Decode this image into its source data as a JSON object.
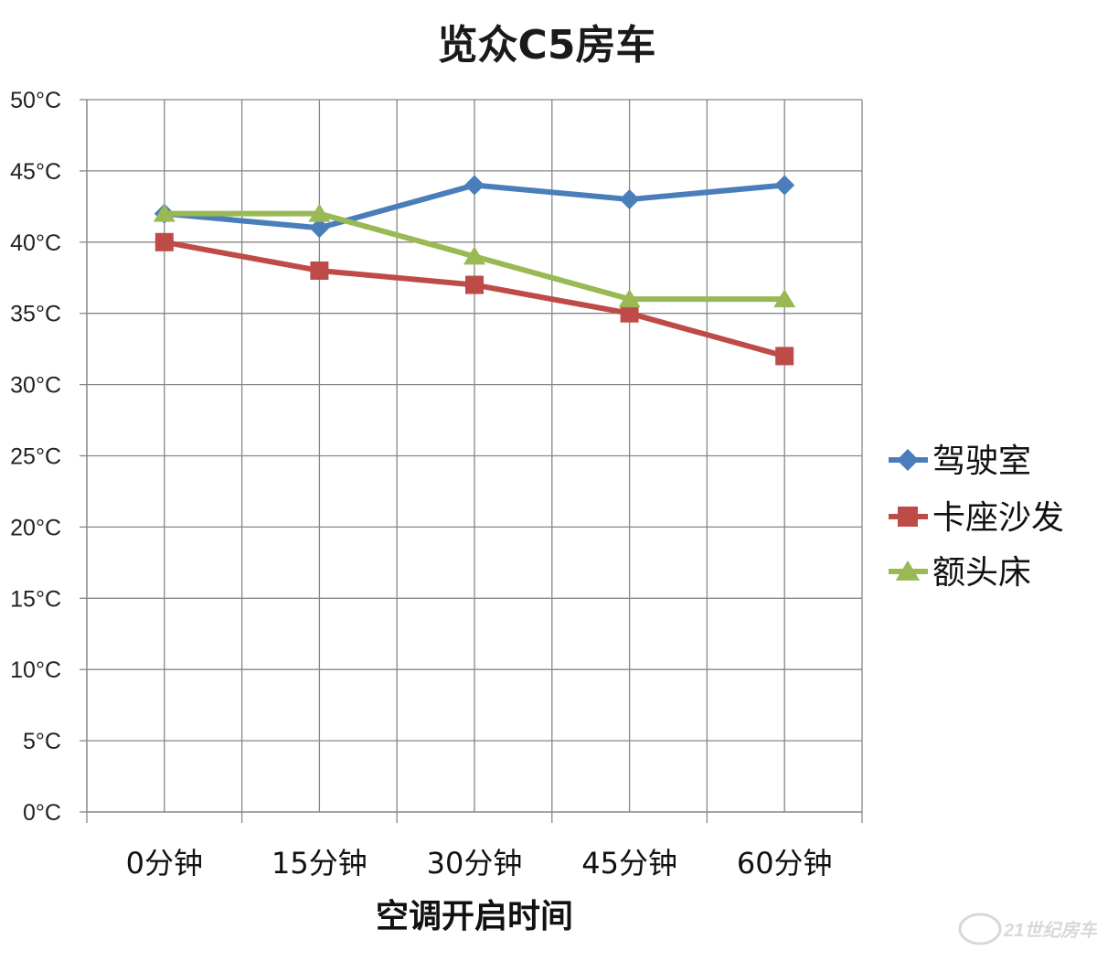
{
  "chart_data": {
    "type": "line",
    "title": "览众C5房车",
    "xlabel": "空调开启时间",
    "ylabel": "",
    "categories": [
      "0分钟",
      "15分钟",
      "30分钟",
      "45分钟",
      "60分钟"
    ],
    "ylim": [
      0,
      50
    ],
    "ytick_step": 5,
    "ytick_labels": [
      "0°C",
      "5°C",
      "10°C",
      "15°C",
      "20°C",
      "25°C",
      "30°C",
      "35°C",
      "40°C",
      "45°C",
      "50°C"
    ],
    "grid": true,
    "legend_position": "right",
    "series": [
      {
        "name": "驾驶室",
        "values": [
          42,
          41,
          44,
          43,
          44
        ],
        "color": "#4a7ebb",
        "marker": "diamond"
      },
      {
        "name": "卡座沙发",
        "values": [
          40,
          38,
          37,
          35,
          32
        ],
        "color": "#be4b48",
        "marker": "square"
      },
      {
        "name": "额头床",
        "values": [
          42,
          42,
          39,
          36,
          36
        ],
        "color": "#98b954",
        "marker": "triangle"
      }
    ]
  },
  "watermark": {
    "text": "21世纪房车"
  }
}
